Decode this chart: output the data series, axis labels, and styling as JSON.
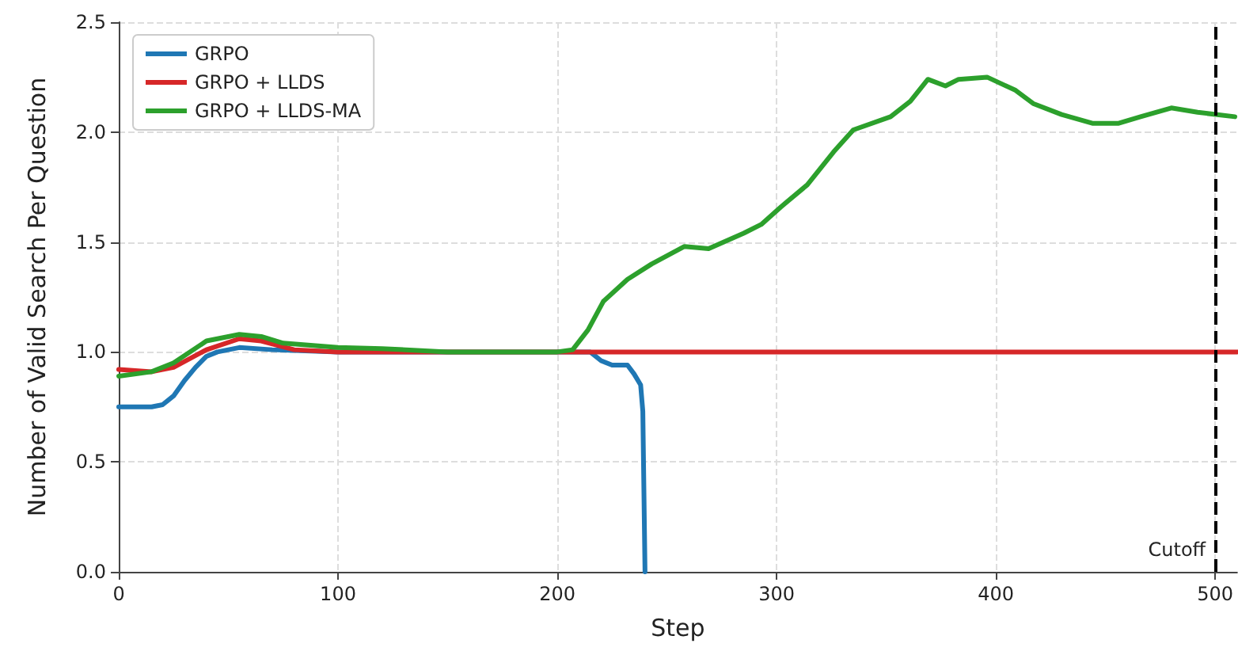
{
  "chart_data": {
    "type": "line",
    "xlabel": "Step",
    "ylabel": "Number of Valid Search Per Question",
    "xlim": [
      0,
      510
    ],
    "xticks": [
      0,
      100,
      200,
      300,
      400,
      500
    ],
    "ylim": [
      0,
      2.5
    ],
    "yticks": [
      {
        "value": 0,
        "label": "0.0"
      },
      0.5,
      {
        "value": 1,
        "label": "1.0"
      },
      1.5,
      {
        "value": 2,
        "label": "2.0"
      },
      2.5
    ],
    "grid": true,
    "legend": "top left",
    "line_style": "solid",
    "marker": "none",
    "ref_lines": [
      {
        "axis": "x",
        "value": 500,
        "label": "Cutoff",
        "color": "#000000",
        "line_style": "dashed"
      }
    ],
    "series": [
      {
        "name": "GRPO",
        "color": "#1f77b4",
        "x": [
          0,
          15,
          20,
          25,
          30,
          35,
          40,
          45,
          55,
          70,
          100,
          150,
          215,
          220,
          225,
          232,
          235,
          238,
          239,
          240
        ],
        "values": [
          0.75,
          0.75,
          0.76,
          0.8,
          0.87,
          0.93,
          0.98,
          1.0,
          1.02,
          1.01,
          1.0,
          1.0,
          1.0,
          0.96,
          0.94,
          0.94,
          0.9,
          0.85,
          0.73,
          0.0
        ]
      },
      {
        "name": "GRPO + LLDS",
        "color": "#d62728",
        "x": [
          0,
          15,
          25,
          40,
          55,
          65,
          80,
          100,
          200,
          300,
          400,
          510
        ],
        "values": [
          0.92,
          0.91,
          0.93,
          1.01,
          1.06,
          1.05,
          1.01,
          1.0,
          1.0,
          1.0,
          1.0,
          1.0
        ]
      },
      {
        "name": "GRPO + LLDS-MA",
        "color": "#2ca02c",
        "x": [
          0,
          15,
          25,
          40,
          55,
          65,
          75,
          100,
          120,
          150,
          200,
          207,
          214,
          221,
          232,
          243,
          258,
          269,
          285,
          293,
          302,
          314,
          326,
          335,
          352,
          361,
          369,
          377,
          383,
          396,
          409,
          417,
          430,
          444,
          456,
          466,
          480,
          492,
          509
        ],
        "values": [
          0.89,
          0.91,
          0.95,
          1.05,
          1.08,
          1.07,
          1.04,
          1.02,
          1.015,
          1.0,
          1.0,
          1.01,
          1.1,
          1.23,
          1.33,
          1.4,
          1.48,
          1.47,
          1.54,
          1.58,
          1.66,
          1.76,
          1.91,
          2.01,
          2.07,
          2.14,
          2.24,
          2.21,
          2.24,
          2.25,
          2.19,
          2.13,
          2.08,
          2.04,
          2.04,
          2.07,
          2.11,
          2.09,
          2.07
        ]
      }
    ]
  }
}
